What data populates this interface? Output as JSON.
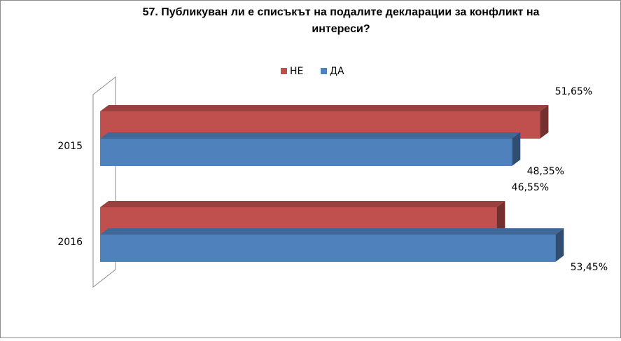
{
  "chart_data": {
    "type": "bar3d-horizontal",
    "title": "57. Публикуван ли е списъкът на подалите декларации за конфликт на интереси?",
    "categories": [
      "2015",
      "2016"
    ],
    "series": [
      {
        "name": "НЕ",
        "color": "#c0504d",
        "values": [
          51.65,
          46.55
        ],
        "value_labels": [
          "51,65%",
          "46,55%"
        ]
      },
      {
        "name": "ДА",
        "color": "#4f81bd",
        "values": [
          48.35,
          53.45
        ],
        "value_labels": [
          "48,35%",
          "53,45%"
        ]
      }
    ],
    "xlim": [
      0,
      60
    ],
    "legend": "top"
  }
}
